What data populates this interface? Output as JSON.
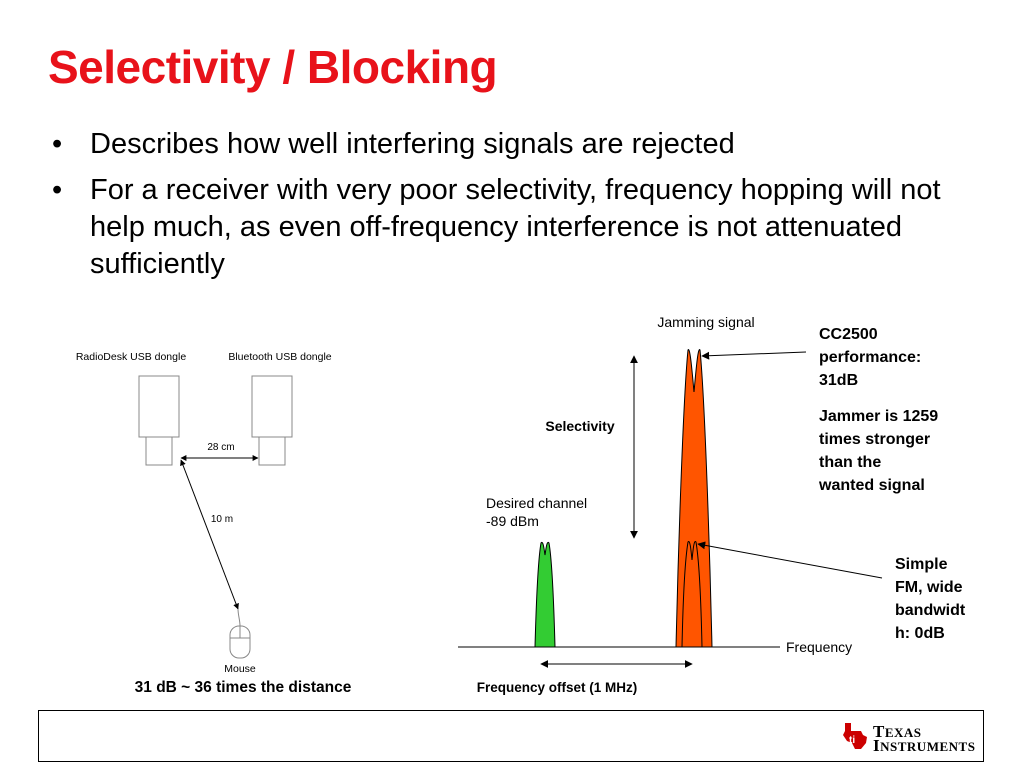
{
  "title": "Selectivity / Blocking",
  "bullets": [
    "Describes how well interfering signals are rejected",
    "For a receiver with very poor selectivity, frequency hopping will not help much, as even off-frequency interference is not attenuated sufficiently"
  ],
  "left_diagram": {
    "radiodesk_label": "RadioDesk USB dongle",
    "bluetooth_label": "Bluetooth USB dongle",
    "distance_short": "28 cm",
    "distance_long": "10 m",
    "mouse_label": "Mouse",
    "caption": "31 dB ~ 36 times the distance"
  },
  "right_diagram": {
    "jamming_label": "Jamming signal",
    "selectivity_label": "Selectivity",
    "desired_line1": "Desired channel",
    "desired_line2": "-89 dBm",
    "frequency_label": "Frequency",
    "offset_label": "Frequency offset (1 MHz)",
    "cc2500_lines": [
      "CC2500",
      "performance:",
      "31dB"
    ],
    "jammer_lines": [
      "Jammer is 1259",
      "times stronger",
      "than the",
      "wanted signal"
    ],
    "simple_fm_lines": [
      "Simple",
      "FM, wide",
      "bandwidt",
      "h:  0dB"
    ],
    "desired_color": "#33cc33",
    "jammer_color": "#ff5500"
  },
  "logo": {
    "line1": "Texas",
    "line2": "Instruments",
    "color": "#cc0000"
  }
}
